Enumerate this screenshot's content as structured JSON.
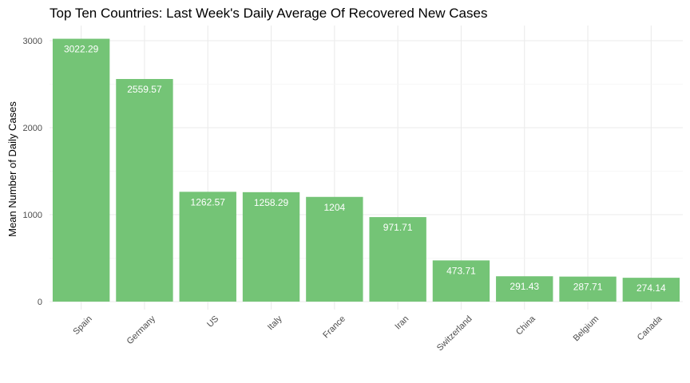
{
  "chart_data": {
    "type": "bar",
    "title": "Top Ten Countries: Last Week's Daily Average Of Recovered New Cases",
    "xlabel": "",
    "ylabel": "Mean Number of Daily Cases",
    "categories": [
      "Spain",
      "Germany",
      "US",
      "Italy",
      "France",
      "Iran",
      "Switzerland",
      "China",
      "Belgium",
      "Canada"
    ],
    "values": [
      3022.29,
      2559.57,
      1262.57,
      1258.29,
      1204,
      971.71,
      473.71,
      291.43,
      287.71,
      274.14
    ],
    "data_labels": [
      "3022.29",
      "2559.57",
      "1262.57",
      "1258.29",
      "1204",
      "971.71",
      "473.71",
      "291.43",
      "287.71",
      "274.14"
    ],
    "yticks": [
      0,
      1000,
      2000,
      3000
    ],
    "ytick_labels": [
      "0",
      "1000",
      "2000",
      "3000"
    ],
    "ylim": [
      0,
      3150
    ],
    "grid": true,
    "bar_color": "#74c476",
    "legend": "none"
  }
}
